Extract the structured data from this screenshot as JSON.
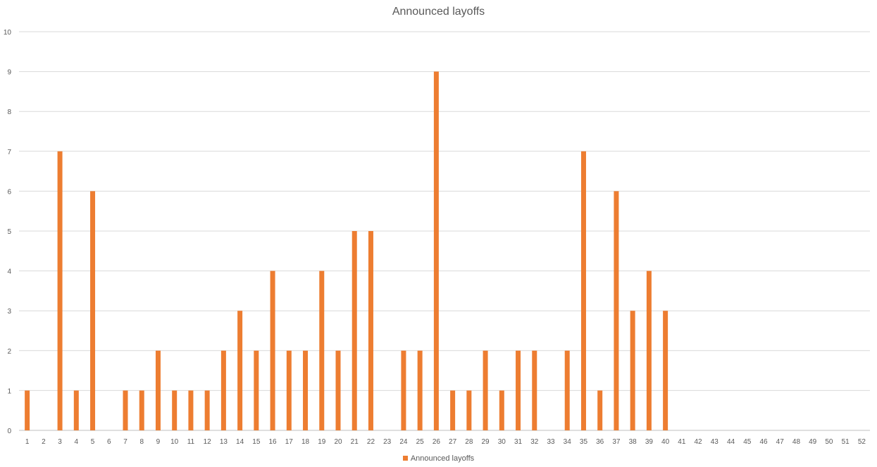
{
  "chart_data": {
    "type": "bar",
    "title": "Announced layoffs",
    "xlabel": "",
    "ylabel": "",
    "categories": [
      "1",
      "2",
      "3",
      "4",
      "5",
      "6",
      "7",
      "8",
      "9",
      "10",
      "11",
      "12",
      "13",
      "14",
      "15",
      "16",
      "17",
      "18",
      "19",
      "20",
      "21",
      "22",
      "23",
      "24",
      "25",
      "26",
      "27",
      "28",
      "29",
      "30",
      "31",
      "32",
      "33",
      "34",
      "35",
      "36",
      "37",
      "38",
      "39",
      "40",
      "41",
      "42",
      "43",
      "44",
      "45",
      "46",
      "47",
      "48",
      "49",
      "50",
      "51",
      "52"
    ],
    "series": [
      {
        "name": "Announced layoffs",
        "color": "#ED7D31",
        "values": [
          1,
          0,
          7,
          1,
          6,
          0,
          1,
          1,
          2,
          1,
          1,
          1,
          2,
          3,
          2,
          4,
          2,
          2,
          4,
          2,
          5,
          5,
          0,
          2,
          2,
          9,
          1,
          1,
          2,
          1,
          2,
          2,
          0,
          2,
          7,
          1,
          6,
          3,
          4,
          3,
          0,
          0,
          0,
          0,
          0,
          0,
          0,
          0,
          0,
          0,
          0,
          0
        ]
      }
    ],
    "ylim": [
      0,
      10
    ],
    "yticks": [
      0,
      1,
      2,
      3,
      4,
      5,
      6,
      7,
      8,
      9,
      10
    ],
    "grid": true,
    "legend": "bottom"
  }
}
